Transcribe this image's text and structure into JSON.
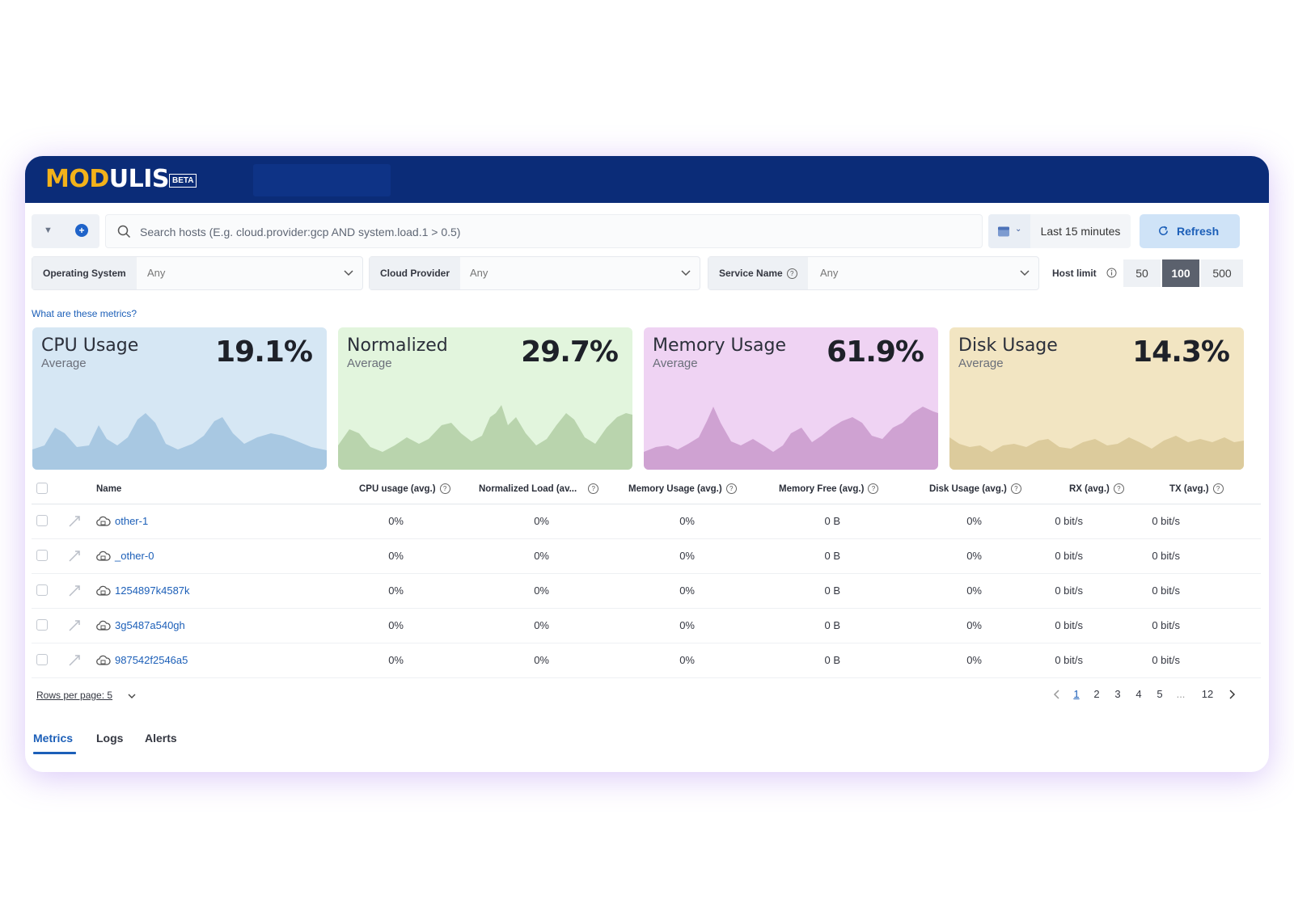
{
  "brand": {
    "name_part1": "MOD",
    "name_part2": "ULIS",
    "badge": "BETA"
  },
  "search": {
    "placeholder": "Search hosts (E.g. cloud.provider:gcp AND system.load.1 > 0.5)",
    "time_range": "Last 15 minutes",
    "refresh_label": "Refresh"
  },
  "filters": {
    "os_label": "Operating System",
    "os_value": "Any",
    "cloud_label": "Cloud Provider",
    "cloud_value": "Any",
    "service_label": "Service Name",
    "service_value": "Any",
    "host_limit_label": "Host limit",
    "host_limit_options": [
      "50",
      "100",
      "500"
    ],
    "host_limit_selected": "100"
  },
  "metrics_link": "What are these metrics?",
  "cards": [
    {
      "title": "CPU Usage",
      "subtitle": "Average",
      "value": "19.1%",
      "bg": "#d6e7f4",
      "fill": "#a8c8e2"
    },
    {
      "title": "Normalized",
      "subtitle": "Average",
      "value": "29.7%",
      "bg": "#e2f5dd",
      "fill": "#b9d4ad"
    },
    {
      "title": "Memory Usage",
      "subtitle": "Average",
      "value": "61.9%",
      "bg": "#efd3f3",
      "fill": "#cfa2d2"
    },
    {
      "title": "Disk Usage",
      "subtitle": "Average",
      "value": "14.3%",
      "bg": "#f2e5c2",
      "fill": "#dccb9c"
    }
  ],
  "table": {
    "headers": {
      "name": "Name",
      "cpu": "CPU usage (avg.)",
      "load": "Normalized Load (av...",
      "mem": "Memory Usage (avg.)",
      "free": "Memory Free (avg.)",
      "disk": "Disk Usage (avg.)",
      "rx": "RX (avg.)",
      "tx": "TX (avg.)"
    },
    "rows": [
      {
        "name": "other-1",
        "cpu": "0%",
        "load": "0%",
        "mem": "0%",
        "free": "0 B",
        "disk": "0%",
        "rx": "0 bit/s",
        "tx": "0 bit/s"
      },
      {
        "name": "_other-0",
        "cpu": "0%",
        "load": "0%",
        "mem": "0%",
        "free": "0 B",
        "disk": "0%",
        "rx": "0 bit/s",
        "tx": "0 bit/s"
      },
      {
        "name": "1254897k4587k",
        "cpu": "0%",
        "load": "0%",
        "mem": "0%",
        "free": "0 B",
        "disk": "0%",
        "rx": "0 bit/s",
        "tx": "0 bit/s"
      },
      {
        "name": "3g5487a540gh",
        "cpu": "0%",
        "load": "0%",
        "mem": "0%",
        "free": "0 B",
        "disk": "0%",
        "rx": "0 bit/s",
        "tx": "0 bit/s"
      },
      {
        "name": "987542f2546a5",
        "cpu": "0%",
        "load": "0%",
        "mem": "0%",
        "free": "0 B",
        "disk": "0%",
        "rx": "0 bit/s",
        "tx": "0 bit/s"
      }
    ]
  },
  "pagination": {
    "rows_per_page": "Rows per page: 5",
    "pages": [
      "1",
      "2",
      "3",
      "4",
      "5"
    ],
    "ellipsis": "...",
    "last_page": "12",
    "current": "1"
  },
  "tabs": [
    "Metrics",
    "Logs",
    "Alerts"
  ],
  "active_tab": "Metrics"
}
